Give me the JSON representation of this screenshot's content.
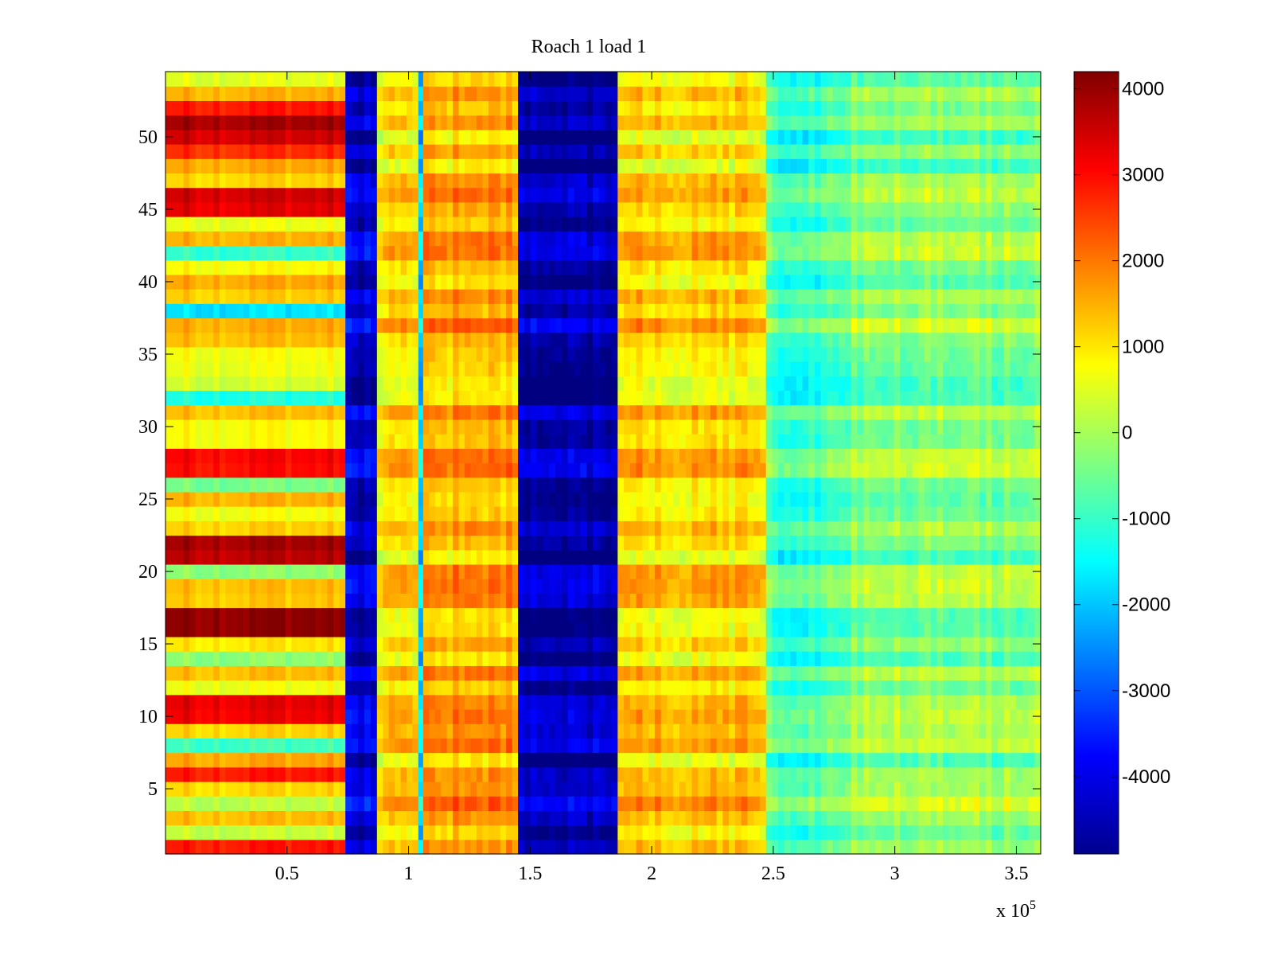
{
  "chart_data": {
    "type": "heatmap",
    "title": "Roach 1 load 1",
    "xlabel": "",
    "ylabel": "",
    "x_exponent_label": "x 10",
    "x_exponent_power": "5",
    "xlim": [
      0,
      3.6
    ],
    "ylim": [
      0.5,
      54.5
    ],
    "x_ticks": [
      0.5,
      1,
      1.5,
      2,
      2.5,
      3,
      3.5
    ],
    "x_tick_labels": [
      "0.5",
      "1",
      "1.5",
      "2",
      "2.5",
      "3",
      "3.5"
    ],
    "y_ticks": [
      5,
      10,
      15,
      20,
      25,
      30,
      35,
      40,
      45,
      50
    ],
    "y_tick_labels": [
      "5",
      "10",
      "15",
      "20",
      "25",
      "30",
      "35",
      "40",
      "45",
      "50"
    ],
    "rows": 54,
    "colormap": "jet",
    "colorbar": {
      "range": [
        -4900,
        4200
      ],
      "ticks": [
        4000,
        3000,
        2000,
        1000,
        0,
        -1000,
        -2000,
        -3000,
        -4000
      ],
      "tick_labels": [
        "4000",
        "3000",
        "2000",
        "1000",
        "0",
        "-1000",
        "-2000",
        "-3000",
        "-4000"
      ]
    },
    "column_segments": [
      {
        "x": [
          0.0,
          0.74
        ],
        "pattern": "rows",
        "row_values": {
          "51": 3900,
          "50": 3500,
          "46": 3500,
          "45": 3300,
          "22": 3900,
          "21": 3700,
          "17": 4100,
          "16": 4100,
          "11": 3300,
          "10": 3200,
          "28": 3100,
          "27": 3000,
          "52": 2900,
          "49": 2700,
          "6": 2900,
          "1": 2900,
          "7": 1600,
          "3": 1400,
          "13": 1400,
          "19": 1400,
          "25": 1500,
          "31": 1400,
          "36": 1400,
          "40": 1600,
          "43": 1500,
          "48": 1600,
          "53": 1500,
          "38": -1700,
          "32": -1200,
          "42": -1000,
          "26": -400,
          "20": -200,
          "14": -200,
          "8": -900,
          "2": 300,
          "4": 200
        }
      },
      {
        "x": [
          0.74,
          0.87
        ],
        "base": -4300
      },
      {
        "x": [
          0.87,
          1.04
        ],
        "base": 1000
      },
      {
        "x": [
          1.04,
          1.06
        ],
        "base": -1700
      },
      {
        "x": [
          1.06,
          1.45
        ],
        "base": 1500
      },
      {
        "x": [
          1.45,
          1.86
        ],
        "base": -4600
      },
      {
        "x": [
          1.86,
          2.47
        ],
        "base": 1100
      },
      {
        "x": [
          2.47,
          2.82
        ],
        "base": -900
      },
      {
        "x": [
          2.82,
          3.6
        ],
        "base": -300
      }
    ]
  }
}
